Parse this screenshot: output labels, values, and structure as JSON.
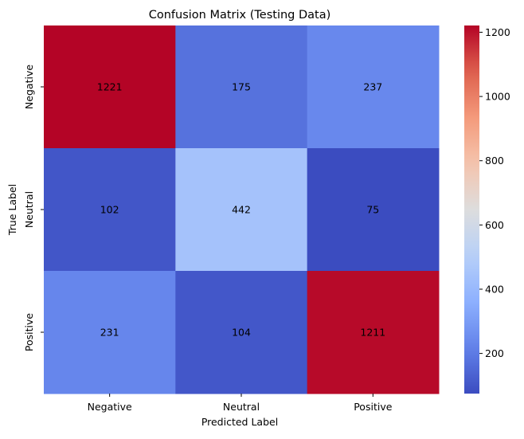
{
  "chart_data": {
    "type": "heatmap",
    "title": "Confusion Matrix (Testing Data)",
    "xlabel": "Predicted Label",
    "ylabel": "True Label",
    "x_categories": [
      "Negative",
      "Neutral",
      "Positive"
    ],
    "y_categories": [
      "Negative",
      "Neutral",
      "Positive"
    ],
    "values": [
      [
        1221,
        175,
        237
      ],
      [
        102,
        442,
        75
      ],
      [
        231,
        104,
        1211
      ]
    ],
    "colormap": "coolwarm",
    "colorbar": {
      "vmin": 75,
      "vmax": 1221,
      "ticks": [
        200,
        400,
        600,
        800,
        1000,
        1200
      ]
    },
    "annotations": true,
    "grid": false
  }
}
